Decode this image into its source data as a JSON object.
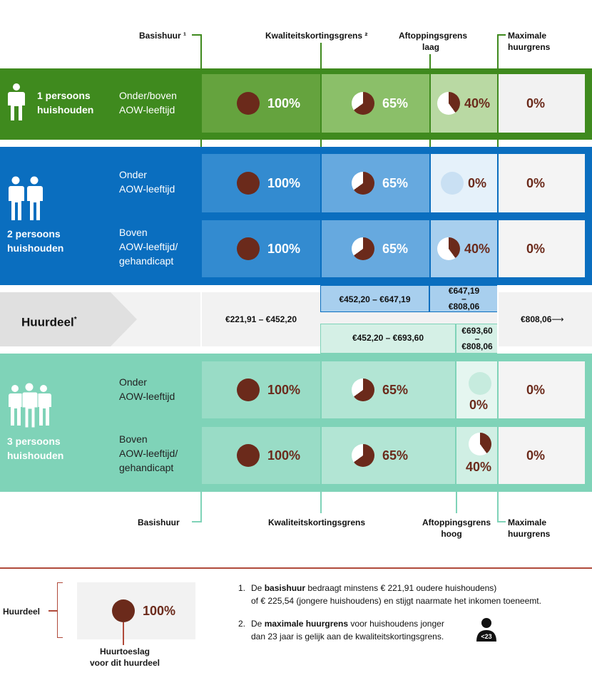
{
  "headers_top": {
    "basishuur": "Basishuur ¹",
    "kwaliteitskortingsgrens": "Kwaliteitskortingsgrens ²",
    "aftoppingsgrens_laag_1": "Aftoppingsgrens",
    "aftoppingsgrens_laag_2": "laag",
    "maximale_1": "Maximale",
    "maximale_2": "huurgrens"
  },
  "headers_bottom": {
    "basishuur": "Basishuur",
    "kwaliteitskortingsgrens": "Kwaliteitskortingsgrens",
    "aftoppingsgrens_hoog_1": "Aftoppingsgrens",
    "aftoppingsgrens_hoog_2": "hoog",
    "maximale_1": "Maximale",
    "maximale_2": "huurgrens"
  },
  "groups": {
    "one": {
      "title_1": "1 persoons",
      "title_2": "huishouden",
      "row": {
        "label_1": "Onder/boven",
        "label_2": "AOW-leeftijd",
        "values": [
          "100%",
          "65%",
          "40%",
          "0%"
        ]
      }
    },
    "two": {
      "title_1": "2 persoons",
      "title_2": "huishouden",
      "row_a": {
        "label_1": "Onder",
        "label_2": "AOW-leeftijd",
        "values": [
          "100%",
          "65%",
          "0%",
          "0%"
        ]
      },
      "row_b": {
        "label_1": "Boven",
        "label_2": "AOW-leeftijd/",
        "label_3": "gehandicapt",
        "values": [
          "100%",
          "65%",
          "40%",
          "0%"
        ]
      }
    },
    "three": {
      "title_1": "3 persoons",
      "title_2": "huishouden",
      "row_a": {
        "label_1": "Onder",
        "label_2": "AOW-leeftijd",
        "values": [
          "100%",
          "65%",
          "0%",
          "0%"
        ]
      },
      "row_b": {
        "label_1": "Boven",
        "label_2": "AOW-leeftijd/",
        "label_3": "gehandicapt",
        "values": [
          "100%",
          "65%",
          "40%",
          "0%"
        ]
      }
    }
  },
  "huurdeel": {
    "label": "Huurdeel",
    "asterisk": "*",
    "basis_range": "€221,91 – €452,20",
    "blue_kwal_range": "€452,20 – €647,19",
    "blue_aft_range_1": "€647,19",
    "blue_aft_range_dash": "–",
    "blue_aft_range_2": "€808,06",
    "teal_kwal_range": "€452,20 – €693,60",
    "teal_aft_range_1": "€693,60",
    "teal_aft_range_dash": "–",
    "teal_aft_range_2": "€808,06",
    "max_range": "€808,06",
    "arrow": "⟶"
  },
  "legend": {
    "label": "Huurdeel",
    "pct": "100%",
    "caption_1": "Huurtoeslag",
    "caption_2": "voor dit huurdeel"
  },
  "notes": {
    "n1_num": "1.",
    "n1_a": "De ",
    "n1_bold": "basishuur",
    "n1_b": " bedraagt minstens € 221,91 oudere huishoudens)",
    "n1_c": "of € 225,54 (jongere huishoudens) en stijgt naarmate het inkomen toeneemt.",
    "n2_num": "2.",
    "n2_a": "De ",
    "n2_bold": "maximale huurgrens",
    "n2_b": " voor huishoudens jonger",
    "n2_c": "dan 23 jaar is gelijk aan de kwaliteitskortingsgrens.",
    "badge": "<23"
  },
  "colors": {
    "green_dark": "#3f8a1e",
    "blue_dark": "#0a6ebf",
    "teal": "#7fd3b8",
    "pie_brown": "#6b2a1b"
  }
}
